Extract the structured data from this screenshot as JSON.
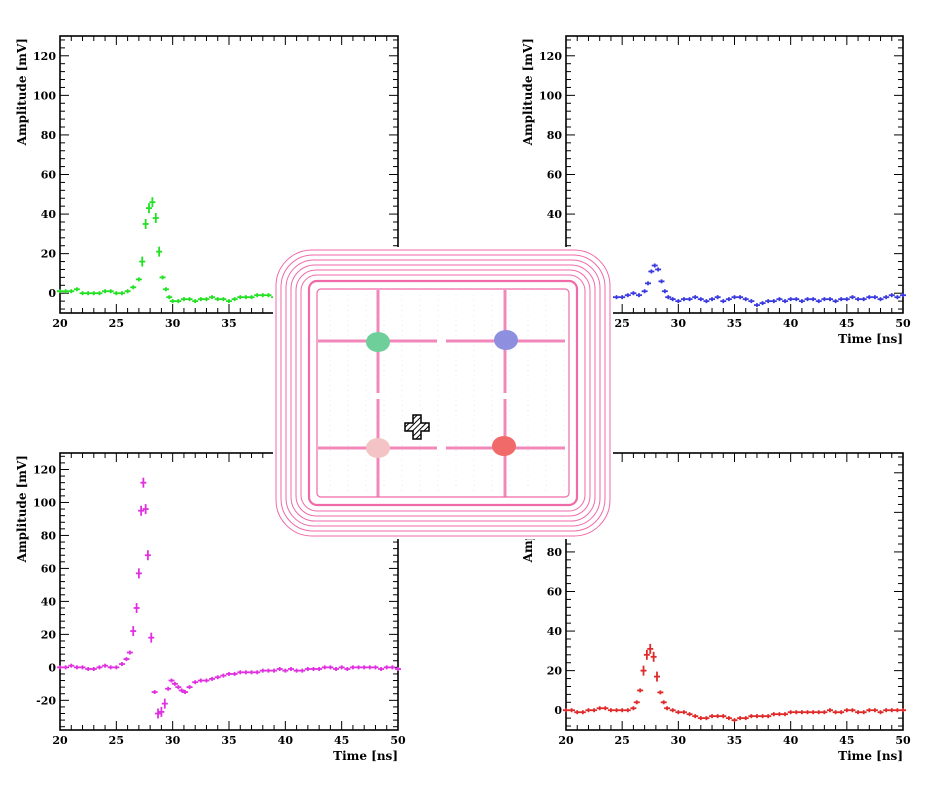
{
  "chart_data": [
    {
      "type": "line",
      "id": "top-left",
      "color": "#22e022",
      "xlabel": "",
      "ylabel": "Amplitude [mV]",
      "xlim": [
        20,
        50
      ],
      "ylim": [
        -10,
        130
      ],
      "xticks": [
        "20",
        "25",
        "30",
        "35"
      ],
      "yticks": [
        "0",
        "20",
        "40",
        "60",
        "80",
        "100",
        "120"
      ],
      "series": [
        {
          "x": [
            20,
            20.5,
            21,
            21.5,
            22,
            22.5,
            23,
            23.5,
            24,
            24.5,
            25,
            25.5,
            26,
            26.5,
            27,
            27.3,
            27.6,
            27.9,
            28.2,
            28.5,
            28.8,
            29.1,
            29.4,
            29.7,
            30,
            30.5,
            31,
            31.5,
            32,
            32.5,
            33,
            33.5,
            34,
            34.5,
            35,
            35.5,
            36,
            36.5,
            37,
            37.5,
            38,
            38.5,
            39
          ],
          "y": [
            1,
            1,
            1,
            2,
            0,
            0,
            0,
            0,
            1,
            1,
            0,
            0,
            1,
            3,
            7,
            16,
            35,
            43,
            46,
            38,
            21,
            8,
            2,
            -2,
            -4,
            -4,
            -3,
            -3,
            -4,
            -3,
            -3,
            -2,
            -3,
            -3,
            -4,
            -3,
            -2,
            -2,
            -2,
            -1,
            -1,
            -1,
            -2
          ]
        }
      ]
    },
    {
      "type": "line",
      "id": "top-right",
      "color": "#3a3ae0",
      "xlabel": "Time [ns]",
      "ylabel": "Amplitude [mV]",
      "xlim": [
        20,
        50
      ],
      "ylim": [
        -10,
        130
      ],
      "xticks": [
        "25",
        "30",
        "35",
        "40",
        "45",
        "50"
      ],
      "yticks": [
        "40",
        "60",
        "80",
        "100",
        "120"
      ],
      "series": [
        {
          "x": [
            24,
            24.5,
            25,
            25.5,
            26,
            26.5,
            27,
            27.3,
            27.6,
            27.9,
            28.2,
            28.5,
            28.8,
            29.1,
            29.5,
            30,
            30.5,
            31,
            31.5,
            32,
            32.5,
            33,
            33.5,
            34,
            34.5,
            35,
            35.5,
            36,
            36.5,
            37,
            37.5,
            38,
            38.5,
            39,
            39.5,
            40,
            40.5,
            41,
            41.5,
            42,
            42.5,
            43,
            43.5,
            44,
            44.5,
            45,
            45.5,
            46,
            46.5,
            47,
            47.5,
            48,
            48.5,
            49,
            49.5,
            50
          ],
          "y": [
            -2,
            -2,
            -2,
            -1,
            0,
            -1,
            1,
            5,
            11,
            14,
            12,
            6,
            1,
            -2,
            -3,
            -4,
            -3,
            -3,
            -2,
            -3,
            -4,
            -3,
            -2,
            -4,
            -3,
            -2,
            -2,
            -3,
            -4,
            -6,
            -5,
            -4,
            -4,
            -3,
            -4,
            -3,
            -3,
            -4,
            -3,
            -3,
            -4,
            -3,
            -3,
            -4,
            -3,
            -3,
            -2,
            -3,
            -3,
            -2,
            -2,
            -3,
            -2,
            -1,
            -2,
            -1
          ]
        }
      ]
    },
    {
      "type": "line",
      "id": "bottom-left",
      "color": "#e030e0",
      "xlabel": "Time [ns]",
      "ylabel": "Amplitude [mV]",
      "xlim": [
        20,
        50
      ],
      "ylim": [
        -38,
        130
      ],
      "xticks": [
        "20",
        "25",
        "30",
        "35",
        "40",
        "45",
        "50"
      ],
      "yticks": [
        "-20",
        "0",
        "20",
        "40",
        "60",
        "80",
        "100",
        "120"
      ],
      "series": [
        {
          "x": [
            20,
            20.5,
            21,
            21.5,
            22,
            22.5,
            23,
            23.5,
            24,
            24.5,
            25,
            25.5,
            25.9,
            26.2,
            26.5,
            26.8,
            27.0,
            27.2,
            27.4,
            27.6,
            27.8,
            28.1,
            28.4,
            28.7,
            29.0,
            29.3,
            29.6,
            29.9,
            30.2,
            30.5,
            30.8,
            31.1,
            31.5,
            32,
            32.5,
            33,
            33.5,
            34,
            34.5,
            35,
            35.5,
            36,
            36.5,
            37,
            37.5,
            38,
            38.5,
            39,
            39.5,
            40,
            40.5,
            41,
            41.5,
            42,
            42.5,
            43,
            43.5,
            44,
            44.5,
            45,
            45.5,
            46,
            46.5,
            47,
            47.5,
            48,
            48.5,
            49,
            49.5,
            50
          ],
          "y": [
            0,
            0,
            1,
            0,
            0,
            -1,
            -1,
            0,
            1,
            0,
            0,
            2,
            5,
            9,
            22,
            36,
            57,
            95,
            112,
            96,
            68,
            18,
            -15,
            -28,
            -27,
            -22,
            -13,
            -8,
            -10,
            -12,
            -14,
            -15,
            -12,
            -9,
            -8,
            -8,
            -7,
            -6,
            -5,
            -4,
            -4,
            -3,
            -3,
            -3,
            -3,
            -2,
            -2,
            -2,
            -1,
            -2,
            -1,
            -2,
            -2,
            -1,
            -1,
            -1,
            0,
            0,
            -1,
            0,
            -1,
            0,
            0,
            0,
            0,
            0,
            -1,
            0,
            0,
            -1
          ]
        }
      ]
    },
    {
      "type": "line",
      "id": "bottom-right",
      "color": "#e02a2a",
      "xlabel": "Time [ns]",
      "ylabel": "Amplitude [mV]",
      "xlim": [
        20,
        50
      ],
      "ylim": [
        -10,
        130
      ],
      "xticks": [
        "20",
        "25",
        "30",
        "35",
        "40",
        "45",
        "50"
      ],
      "yticks": [
        "0",
        "20",
        "40",
        "60",
        "80"
      ],
      "series": [
        {
          "x": [
            20,
            20.5,
            21,
            21.5,
            22,
            22.5,
            23,
            23.5,
            24,
            24.5,
            25,
            25.5,
            26,
            26.3,
            26.6,
            26.9,
            27.2,
            27.5,
            27.8,
            28.1,
            28.4,
            28.7,
            29,
            29.5,
            30,
            30.5,
            31,
            31.5,
            32,
            32.5,
            33,
            33.5,
            34,
            34.5,
            35,
            35.5,
            36,
            36.5,
            37,
            37.5,
            38,
            38.5,
            39,
            39.5,
            40,
            40.5,
            41,
            41.5,
            42,
            42.5,
            43,
            43.5,
            44,
            44.5,
            45,
            45.5,
            46,
            46.5,
            47,
            47.5,
            48,
            48.5,
            49,
            49.5,
            50
          ],
          "y": [
            0,
            0,
            -1,
            -1,
            0,
            0,
            1,
            1,
            0,
            0,
            0,
            0,
            1,
            4,
            10,
            20,
            28,
            31,
            27,
            17,
            9,
            4,
            1,
            0,
            -1,
            -1,
            -2,
            -3,
            -4,
            -4,
            -3,
            -3,
            -3,
            -4,
            -5,
            -4,
            -4,
            -3,
            -3,
            -3,
            -3,
            -2,
            -2,
            -2,
            -1,
            -1,
            -1,
            -1,
            -1,
            -1,
            -1,
            0,
            -1,
            -1,
            0,
            0,
            -1,
            -1,
            0,
            0,
            -1,
            0,
            0,
            0,
            0
          ]
        }
      ]
    }
  ],
  "detector": {
    "marker_colors": [
      "#6fcf9a",
      "#8f8fe0",
      "#f4c4c4",
      "#f06a6a"
    ]
  }
}
